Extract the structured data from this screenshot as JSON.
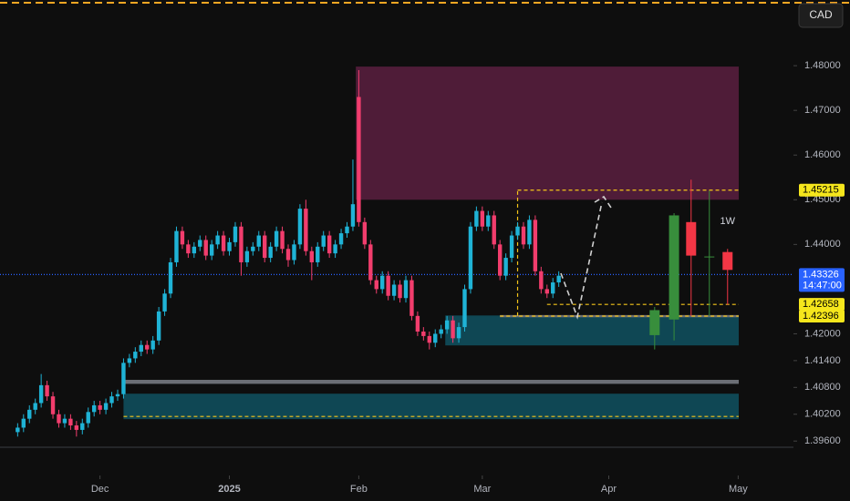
{
  "chart_data": {
    "type": "candlestick",
    "currency_button": "CAD",
    "xlim": [
      0,
      134.9
    ],
    "ylim": [
      1.3887,
      1.4947
    ],
    "xticks": [
      {
        "value": 17,
        "label": "Dec"
      },
      {
        "value": 39,
        "label": "2025"
      },
      {
        "value": 61,
        "label": "Feb"
      },
      {
        "value": 82,
        "label": "Mar"
      },
      {
        "value": 103.5,
        "label": "Apr"
      },
      {
        "value": 125.5,
        "label": "May"
      }
    ],
    "yticks": [
      {
        "value": 1.48,
        "label": "1.48000"
      },
      {
        "value": 1.47,
        "label": "1.47000"
      },
      {
        "value": 1.46,
        "label": "1.46000"
      },
      {
        "value": 1.45,
        "label": "1.45000"
      },
      {
        "value": 1.44,
        "label": "1.44000"
      },
      {
        "value": 1.42,
        "label": "1.42000"
      },
      {
        "value": 1.414,
        "label": "1.41400"
      },
      {
        "value": 1.408,
        "label": "1.40800"
      },
      {
        "value": 1.402,
        "label": "1.40200"
      },
      {
        "value": 1.396,
        "label": "1.39600"
      }
    ],
    "up_color": "#1fb3d6",
    "down_color": "#f23d6d",
    "daily": {
      "x": [
        3,
        4,
        5,
        6,
        7,
        8,
        9,
        10,
        11,
        12,
        13,
        14,
        15,
        16,
        17,
        18,
        19,
        20,
        21,
        22,
        23,
        24,
        25,
        26,
        27,
        28,
        29,
        30,
        31,
        32,
        33,
        34,
        35,
        36,
        37,
        38,
        39,
        40,
        41,
        42,
        43,
        44,
        45,
        46,
        47,
        48,
        49,
        50,
        51,
        52,
        53,
        54,
        55,
        56,
        57,
        58,
        59,
        60,
        61,
        62,
        63,
        64,
        65,
        66,
        67,
        68,
        69,
        70,
        71,
        72,
        73,
        74,
        75,
        76,
        77,
        78,
        79,
        80,
        81,
        82,
        83,
        84,
        85,
        86,
        87,
        88,
        89,
        90,
        91,
        92,
        93,
        94,
        95
      ],
      "open": [
        1.398,
        1.399,
        1.401,
        1.403,
        1.4045,
        1.4085,
        1.406,
        1.402,
        1.4,
        1.401,
        1.3995,
        1.3985,
        1.4,
        1.4025,
        1.404,
        1.403,
        1.4045,
        1.406,
        1.4065,
        1.4135,
        1.4145,
        1.416,
        1.4175,
        1.4165,
        1.4185,
        1.425,
        1.429,
        1.436,
        1.443,
        1.44,
        1.438,
        1.4395,
        1.441,
        1.4375,
        1.44,
        1.442,
        1.4385,
        1.4405,
        1.444,
        1.436,
        1.4385,
        1.4395,
        1.442,
        1.437,
        1.4395,
        1.443,
        1.439,
        1.4365,
        1.44,
        1.448,
        1.4385,
        1.436,
        1.4395,
        1.442,
        1.438,
        1.44,
        1.4425,
        1.444,
        1.473,
        1.445,
        1.44,
        1.432,
        1.43,
        1.433,
        1.4285,
        1.431,
        1.428,
        1.432,
        1.424,
        1.4205,
        1.4195,
        1.418,
        1.42,
        1.421,
        1.423,
        1.419,
        1.4215,
        1.43,
        1.444,
        1.4475,
        1.444,
        1.4465,
        1.44,
        1.433,
        1.437,
        1.442,
        1.444,
        1.44,
        1.4455,
        1.434,
        1.43,
        1.429,
        1.4315
      ],
      "high": [
        1.4,
        1.402,
        1.404,
        1.4055,
        1.411,
        1.4095,
        1.407,
        1.403,
        1.402,
        1.402,
        1.4005,
        1.401,
        1.4035,
        1.405,
        1.405,
        1.4055,
        1.407,
        1.4075,
        1.4145,
        1.4155,
        1.417,
        1.4185,
        1.4185,
        1.4195,
        1.426,
        1.43,
        1.437,
        1.444,
        1.444,
        1.441,
        1.4405,
        1.442,
        1.442,
        1.441,
        1.443,
        1.443,
        1.4415,
        1.445,
        1.445,
        1.4395,
        1.4405,
        1.443,
        1.443,
        1.4405,
        1.444,
        1.444,
        1.44,
        1.441,
        1.449,
        1.45,
        1.4395,
        1.4405,
        1.443,
        1.443,
        1.441,
        1.4435,
        1.445,
        1.459,
        1.479,
        1.446,
        1.441,
        1.433,
        1.434,
        1.434,
        1.432,
        1.432,
        1.433,
        1.433,
        1.425,
        1.4215,
        1.4205,
        1.421,
        1.422,
        1.424,
        1.424,
        1.4225,
        1.431,
        1.445,
        1.4485,
        1.4485,
        1.4475,
        1.4475,
        1.441,
        1.438,
        1.443,
        1.445,
        1.445,
        1.4465,
        1.4465,
        1.435,
        1.431,
        1.4325,
        1.434
      ],
      "low": [
        1.397,
        1.398,
        1.4,
        1.402,
        1.4035,
        1.405,
        1.401,
        1.399,
        1.399,
        1.3985,
        1.397,
        1.3975,
        1.399,
        1.4015,
        1.402,
        1.402,
        1.4035,
        1.405,
        1.4055,
        1.4125,
        1.4135,
        1.415,
        1.4155,
        1.4155,
        1.4175,
        1.424,
        1.428,
        1.435,
        1.439,
        1.437,
        1.437,
        1.4385,
        1.4365,
        1.4365,
        1.439,
        1.4375,
        1.4375,
        1.4395,
        1.433,
        1.435,
        1.4375,
        1.4385,
        1.436,
        1.436,
        1.4385,
        1.438,
        1.435,
        1.4355,
        1.439,
        1.4375,
        1.432,
        1.435,
        1.4385,
        1.437,
        1.437,
        1.439,
        1.4415,
        1.443,
        1.444,
        1.439,
        1.431,
        1.429,
        1.429,
        1.4275,
        1.4275,
        1.427,
        1.427,
        1.423,
        1.4195,
        1.4185,
        1.4165,
        1.417,
        1.419,
        1.42,
        1.418,
        1.418,
        1.4205,
        1.429,
        1.443,
        1.443,
        1.443,
        1.439,
        1.432,
        1.432,
        1.436,
        1.441,
        1.439,
        1.439,
        1.433,
        1.429,
        1.428,
        1.428,
        1.4305
      ],
      "close": [
        1.399,
        1.401,
        1.403,
        1.4045,
        1.4085,
        1.406,
        1.402,
        1.4,
        1.401,
        1.3995,
        1.3985,
        1.4,
        1.4025,
        1.404,
        1.403,
        1.4045,
        1.406,
        1.4065,
        1.4135,
        1.4145,
        1.416,
        1.4175,
        1.4165,
        1.4185,
        1.425,
        1.429,
        1.436,
        1.443,
        1.44,
        1.438,
        1.4395,
        1.441,
        1.4375,
        1.44,
        1.442,
        1.4385,
        1.4405,
        1.444,
        1.436,
        1.4385,
        1.4395,
        1.442,
        1.437,
        1.4395,
        1.443,
        1.439,
        1.4365,
        1.44,
        1.448,
        1.4385,
        1.436,
        1.4395,
        1.442,
        1.438,
        1.44,
        1.4425,
        1.444,
        1.449,
        1.445,
        1.44,
        1.432,
        1.43,
        1.433,
        1.4285,
        1.431,
        1.428,
        1.432,
        1.424,
        1.4205,
        1.4195,
        1.418,
        1.42,
        1.421,
        1.423,
        1.419,
        1.4215,
        1.43,
        1.444,
        1.4475,
        1.444,
        1.4465,
        1.44,
        1.433,
        1.437,
        1.442,
        1.444,
        1.44,
        1.4455,
        1.434,
        1.43,
        1.429,
        1.4315,
        1.433
      ]
    },
    "weekly": {
      "label": "1W",
      "up_color": "#388e3c",
      "down_color": "#f23645",
      "x": [
        111.3,
        114.6,
        117.5,
        120.6,
        123.7
      ],
      "open": [
        1.4197,
        1.4232,
        1.445,
        1.4373,
        1.4383
      ],
      "high": [
        1.426,
        1.447,
        1.4545,
        1.452,
        1.439
      ],
      "low": [
        1.4165,
        1.4185,
        1.424,
        1.424,
        1.4265
      ],
      "close": [
        1.4253,
        1.4465,
        1.4375,
        1.4373,
        1.4343
      ]
    },
    "zones": [
      {
        "x": [
          60.5,
          125.6
        ],
        "y": [
          1.45,
          1.4798
        ],
        "color": "#4f1c38"
      },
      {
        "x": [
          75.7,
          125.6
        ],
        "y": [
          1.4174,
          1.4241
        ],
        "color": "#0f4754"
      },
      {
        "x": [
          21,
          125.6
        ],
        "y": [
          1.4009,
          1.4066
        ],
        "color": "#0f4754"
      },
      {
        "x": [
          21,
          125.6
        ],
        "y": [
          1.4088,
          1.4097
        ],
        "color": "#6b6e75"
      },
      {
        "x": [
          85,
          125.6
        ],
        "y": [
          1.4237,
          1.4242
        ],
        "color": "#6b6e75"
      }
    ],
    "lines": [
      {
        "x": [
          88,
          125.6
        ],
        "y": [
          1.45215,
          1.45215
        ],
        "color": "#f5c518",
        "dash": "4 3"
      },
      {
        "x": [
          88,
          88
        ],
        "y": [
          1.424,
          1.45215
        ],
        "color": "#f5c518",
        "dash": "4 3"
      },
      {
        "x": [
          93,
          125.6
        ],
        "y": [
          1.42658,
          1.42658
        ],
        "color": "#f5c518",
        "dash": "4 3"
      },
      {
        "x": [
          85,
          125.6
        ],
        "y": [
          1.42396,
          1.42396
        ],
        "color": "#f5c518",
        "dash": "4 3"
      },
      {
        "x": [
          21,
          125.6
        ],
        "y": [
          1.4015,
          1.4015
        ],
        "color": "#f5c518",
        "dash": "4 3"
      },
      {
        "x": [
          0,
          134.9
        ],
        "y": [
          1.43326,
          1.43326
        ],
        "color": "#2962ff",
        "dash": "1 2"
      }
    ],
    "price_labels": [
      {
        "value": 1.45215,
        "color": "#f5e61c",
        "text_color": "#000000"
      },
      {
        "value": 1.43326,
        "time": "14:47:00",
        "color": "#2962ff",
        "text_color": "#ffffff"
      },
      {
        "value": 1.42658,
        "color": "#f5e61c",
        "text_color": "#000000"
      },
      {
        "value": 1.42396,
        "color": "#f5e61c",
        "text_color": "#000000"
      }
    ]
  }
}
